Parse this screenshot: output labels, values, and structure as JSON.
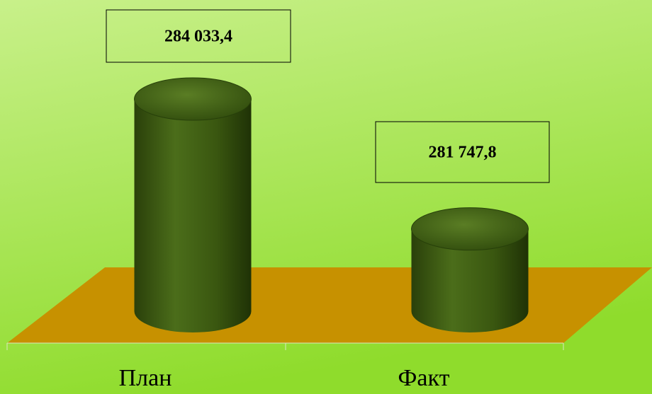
{
  "chart_data": {
    "type": "cylinder",
    "categories": [
      "План",
      "Факт"
    ],
    "values": [
      284033.4,
      281747.8
    ],
    "value_labels": [
      "284 033,4",
      "281 747,8"
    ],
    "color": "#3d5a12",
    "ylim": [
      280300,
      284300
    ]
  }
}
